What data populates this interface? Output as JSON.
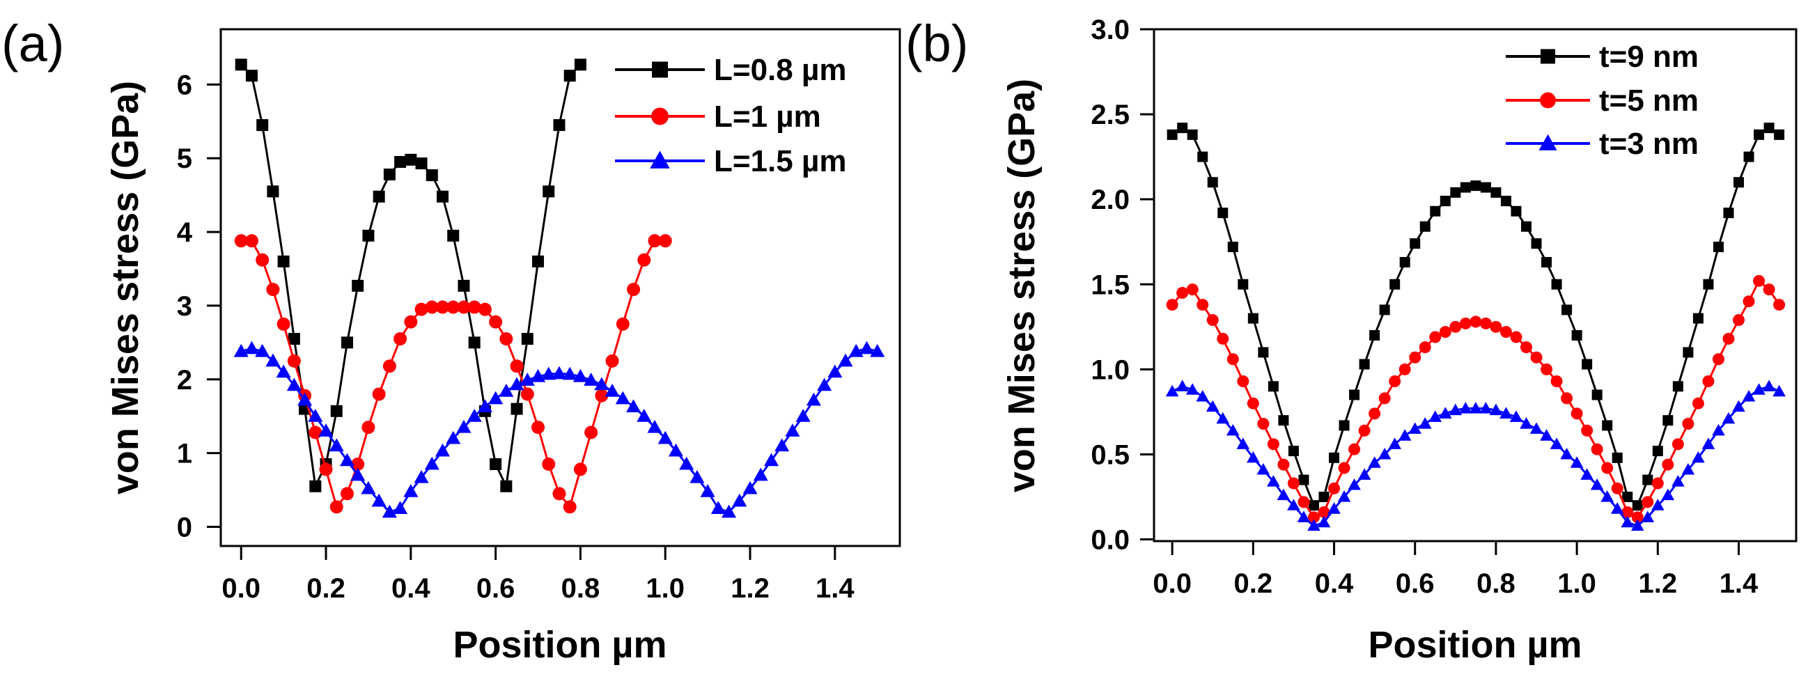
{
  "chart_data": [
    {
      "type": "line",
      "panel_label": "(a)",
      "xlabel": "Position µm",
      "ylabel": "von Mises stress (GPa)",
      "xlim": [
        -0.048,
        1.553
      ],
      "ylim": [
        -0.26,
        6.75
      ],
      "xticks": [
        0.0,
        0.2,
        0.4,
        0.6,
        0.8,
        1.0,
        1.2,
        1.4
      ],
      "xtick_labels": [
        "0.0",
        "0.2",
        "0.4",
        "0.6",
        "0.8",
        "1.0",
        "1.2",
        "1.4"
      ],
      "yticks": [
        0,
        1,
        2,
        3,
        4,
        5,
        6
      ],
      "ytick_labels": [
        "0",
        "1",
        "2",
        "3",
        "4",
        "5",
        "6"
      ],
      "grid": false,
      "legend_position": "top-right",
      "series": [
        {
          "name": "L=0.8 µm",
          "color": "#000000",
          "marker": "square",
          "x_start": 0,
          "x_step": 0.025,
          "values": [
            6.27,
            6.12,
            5.45,
            4.55,
            3.6,
            2.55,
            1.6,
            0.55,
            0.85,
            1.57,
            2.5,
            3.27,
            3.95,
            4.48,
            4.78,
            4.95,
            4.98,
            4.93,
            4.77,
            4.48,
            3.95,
            3.27,
            2.5,
            1.57,
            0.85,
            0.55,
            1.6,
            2.55,
            3.6,
            4.55,
            5.45,
            6.12,
            6.27
          ]
        },
        {
          "name": "L=1 µm",
          "color": "#ff0000",
          "marker": "circle",
          "x_start": 0,
          "x_step": 0.025,
          "values": [
            3.88,
            3.88,
            3.62,
            3.22,
            2.75,
            2.25,
            1.78,
            1.28,
            0.78,
            0.27,
            0.45,
            0.85,
            1.35,
            1.8,
            2.18,
            2.55,
            2.78,
            2.95,
            2.98,
            2.98,
            2.98,
            2.98,
            2.98,
            2.95,
            2.78,
            2.55,
            2.18,
            1.8,
            1.35,
            0.85,
            0.45,
            0.27,
            0.78,
            1.28,
            1.78,
            2.25,
            2.75,
            3.22,
            3.62,
            3.88,
            3.88
          ]
        },
        {
          "name": "L=1.5 µm",
          "color": "#0000ff",
          "marker": "triangle",
          "x_start": 0,
          "x_step": 0.025,
          "values": [
            2.38,
            2.42,
            2.38,
            2.25,
            2.1,
            1.92,
            1.72,
            1.5,
            1.3,
            1.1,
            0.9,
            0.7,
            0.52,
            0.35,
            0.2,
            0.25,
            0.48,
            0.67,
            0.85,
            1.03,
            1.2,
            1.35,
            1.5,
            1.63,
            1.74,
            1.84,
            1.93,
            1.99,
            2.04,
            2.07,
            2.08,
            2.07,
            2.04,
            1.99,
            1.93,
            1.84,
            1.74,
            1.63,
            1.5,
            1.35,
            1.2,
            1.03,
            0.85,
            0.67,
            0.48,
            0.25,
            0.2,
            0.35,
            0.52,
            0.7,
            0.9,
            1.1,
            1.3,
            1.5,
            1.72,
            1.92,
            2.1,
            2.25,
            2.38,
            2.42,
            2.38
          ]
        }
      ]
    },
    {
      "type": "line",
      "panel_label": "(b)",
      "xlabel": "Position µm",
      "ylabel": "von Mises stress (GPa)",
      "xlim": [
        -0.045,
        1.542
      ],
      "ylim": [
        -0.01,
        3.0
      ],
      "xticks": [
        0.0,
        0.2,
        0.4,
        0.6,
        0.8,
        1.0,
        1.2,
        1.4
      ],
      "xtick_labels": [
        "0.0",
        "0.2",
        "0.4",
        "0.6",
        "0.8",
        "1.0",
        "1.2",
        "1.4"
      ],
      "yticks": [
        0.0,
        0.5,
        1.0,
        1.5,
        2.0,
        2.5,
        3.0
      ],
      "ytick_labels": [
        "0.0",
        "0.5",
        "1.0",
        "1.5",
        "2.0",
        "2.5",
        "3.0"
      ],
      "grid": false,
      "legend_position": "top-right",
      "series": [
        {
          "name": "t=9 nm",
          "color": "#000000",
          "marker": "square",
          "x_start": 0,
          "x_step": 0.025,
          "values": [
            2.38,
            2.42,
            2.38,
            2.25,
            2.1,
            1.92,
            1.72,
            1.5,
            1.3,
            1.1,
            0.9,
            0.7,
            0.52,
            0.35,
            0.2,
            0.25,
            0.48,
            0.67,
            0.85,
            1.03,
            1.2,
            1.35,
            1.5,
            1.63,
            1.74,
            1.84,
            1.93,
            1.99,
            2.04,
            2.07,
            2.08,
            2.07,
            2.04,
            1.99,
            1.93,
            1.84,
            1.74,
            1.63,
            1.5,
            1.35,
            1.2,
            1.03,
            0.85,
            0.67,
            0.48,
            0.25,
            0.2,
            0.35,
            0.52,
            0.7,
            0.9,
            1.1,
            1.3,
            1.5,
            1.72,
            1.92,
            2.1,
            2.25,
            2.38,
            2.42,
            2.38
          ]
        },
        {
          "name": "t=5 nm",
          "color": "#ff0000",
          "marker": "circle",
          "x_start": 0,
          "x_step": 0.025,
          "values": [
            1.38,
            1.45,
            1.47,
            1.38,
            1.29,
            1.18,
            1.06,
            0.93,
            0.8,
            0.68,
            0.56,
            0.44,
            0.33,
            0.22,
            0.13,
            0.16,
            0.3,
            0.42,
            0.53,
            0.64,
            0.74,
            0.83,
            0.93,
            1.0,
            1.07,
            1.13,
            1.19,
            1.22,
            1.25,
            1.27,
            1.28,
            1.27,
            1.25,
            1.22,
            1.19,
            1.13,
            1.07,
            1.0,
            0.93,
            0.83,
            0.74,
            0.64,
            0.53,
            0.42,
            0.3,
            0.16,
            0.13,
            0.22,
            0.33,
            0.44,
            0.56,
            0.68,
            0.8,
            0.93,
            1.06,
            1.18,
            1.29,
            1.4,
            1.52,
            1.47,
            1.38
          ]
        },
        {
          "name": "t=3 nm",
          "color": "#0000ff",
          "marker": "triangle",
          "x_start": 0,
          "x_step": 0.025,
          "values": [
            0.87,
            0.9,
            0.88,
            0.84,
            0.78,
            0.71,
            0.64,
            0.56,
            0.48,
            0.41,
            0.34,
            0.26,
            0.2,
            0.13,
            0.08,
            0.1,
            0.18,
            0.25,
            0.32,
            0.38,
            0.45,
            0.5,
            0.56,
            0.61,
            0.65,
            0.68,
            0.72,
            0.74,
            0.76,
            0.77,
            0.77,
            0.77,
            0.76,
            0.74,
            0.72,
            0.68,
            0.65,
            0.61,
            0.56,
            0.5,
            0.45,
            0.38,
            0.32,
            0.25,
            0.18,
            0.1,
            0.08,
            0.13,
            0.2,
            0.26,
            0.34,
            0.41,
            0.48,
            0.56,
            0.64,
            0.71,
            0.78,
            0.84,
            0.88,
            0.9,
            0.87
          ]
        }
      ]
    }
  ]
}
